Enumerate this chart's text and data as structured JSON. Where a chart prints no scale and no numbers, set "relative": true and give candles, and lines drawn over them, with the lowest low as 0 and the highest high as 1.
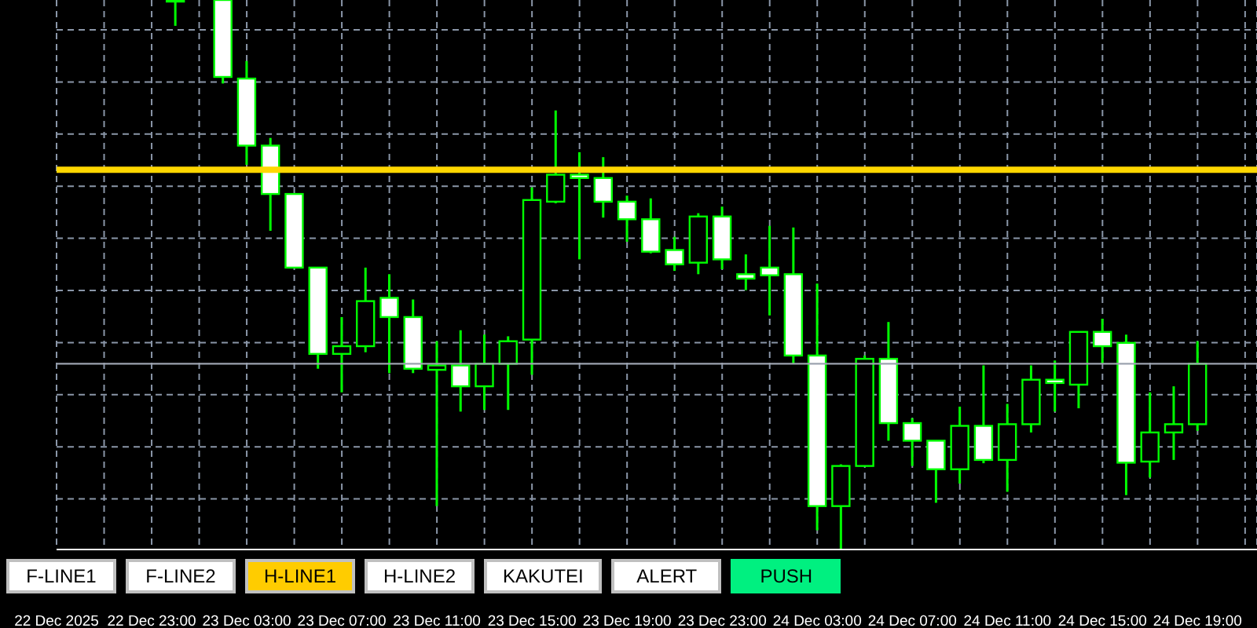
{
  "chart_data": {
    "type": "candlestick",
    "relative": true,
    "color": "#00ff00",
    "grid": true,
    "x": [
      "2025-12-23T00:00",
      "2025-12-23T02:00",
      "2025-12-23T03:00",
      "2025-12-23T04:00",
      "2025-12-23T05:00",
      "2025-12-23T06:00",
      "2025-12-23T07:00",
      "2025-12-23T08:00",
      "2025-12-23T09:00",
      "2025-12-23T10:00",
      "2025-12-23T11:00",
      "2025-12-23T12:00",
      "2025-12-23T13:00",
      "2025-12-23T14:00",
      "2025-12-23T15:00",
      "2025-12-23T16:00",
      "2025-12-23T17:00",
      "2025-12-23T18:00",
      "2025-12-23T19:00",
      "2025-12-23T20:00",
      "2025-12-23T21:00",
      "2025-12-23T22:00",
      "2025-12-23T23:00",
      "2025-12-24T00:00",
      "2025-12-24T01:00",
      "2025-12-24T02:00",
      "2025-12-24T03:00",
      "2025-12-24T04:00",
      "2025-12-24T05:00",
      "2025-12-24T06:00",
      "2025-12-24T07:00",
      "2025-12-24T08:00",
      "2025-12-24T09:00",
      "2025-12-24T10:00",
      "2025-12-24T11:00",
      "2025-12-24T12:00",
      "2025-12-24T13:00",
      "2025-12-24T14:00",
      "2025-12-24T15:00",
      "2025-12-24T16:00",
      "2025-12-24T17:00",
      "2025-12-24T18:00",
      "2025-12-24T19:00"
    ],
    "ohlc": [
      [
        1,
        1,
        0.953,
        1
      ],
      [
        1,
        1,
        0.848,
        0.86
      ],
      [
        0.857,
        0.889,
        0.7,
        0.735
      ],
      [
        0.735,
        0.749,
        0.58,
        0.647
      ],
      [
        0.647,
        0.647,
        0.513,
        0.513
      ],
      [
        0.513,
        0.513,
        0.329,
        0.356
      ],
      [
        0.356,
        0.423,
        0.286,
        0.37
      ],
      [
        0.37,
        0.513,
        0.359,
        0.452
      ],
      [
        0.458,
        0.501,
        0.321,
        0.423
      ],
      [
        0.423,
        0.455,
        0.321,
        0.329
      ],
      [
        0.327,
        0.379,
        0.079,
        0.335
      ],
      [
        0.335,
        0.399,
        0.251,
        0.297
      ],
      [
        0.297,
        0.391,
        0.254,
        0.338
      ],
      [
        0.338,
        0.388,
        0.254,
        0.379
      ],
      [
        0.382,
        0.659,
        0.318,
        0.636
      ],
      [
        0.633,
        0.799,
        0.63,
        0.682
      ],
      [
        0.682,
        0.723,
        0.528,
        0.676
      ],
      [
        0.676,
        0.714,
        0.604,
        0.633
      ],
      [
        0.633,
        0.644,
        0.56,
        0.601
      ],
      [
        0.601,
        0.639,
        0.539,
        0.542
      ],
      [
        0.545,
        0.569,
        0.507,
        0.519
      ],
      [
        0.522,
        0.612,
        0.501,
        0.606
      ],
      [
        0.606,
        0.624,
        0.51,
        0.528
      ],
      [
        0.501,
        0.537,
        0.472,
        0.493
      ],
      [
        0.513,
        0.589,
        0.426,
        0.499
      ],
      [
        0.501,
        0.586,
        0.338,
        0.353
      ],
      [
        0.353,
        0.484,
        0.035,
        0.079
      ],
      [
        0.079,
        0.155,
        0,
        0.152
      ],
      [
        0.152,
        0.353,
        0.152,
        0.347
      ],
      [
        0.347,
        0.414,
        0.198,
        0.23
      ],
      [
        0.23,
        0.239,
        0.152,
        0.198
      ],
      [
        0.198,
        0.198,
        0.085,
        0.146
      ],
      [
        0.146,
        0.26,
        0.12,
        0.225
      ],
      [
        0.225,
        0.335,
        0.157,
        0.163
      ],
      [
        0.163,
        0.265,
        0.105,
        0.228
      ],
      [
        0.228,
        0.335,
        0.213,
        0.309
      ],
      [
        0.309,
        0.344,
        0.251,
        0.303
      ],
      [
        0.3,
        0.396,
        0.257,
        0.396
      ],
      [
        0.396,
        0.42,
        0.338,
        0.37
      ],
      [
        0.376,
        0.391,
        0.099,
        0.158
      ],
      [
        0.16,
        0.286,
        0.131,
        0.213
      ],
      [
        0.213,
        0.297,
        0.163,
        0.228
      ],
      [
        0.228,
        0.379,
        0.216,
        0.338
      ]
    ],
    "xlim": [
      "2025-12-22T19:00",
      "2025-12-24T21:30"
    ],
    "xticks": [
      {
        "value": "2025-12-22T19:00",
        "label": "22 Dec 2025"
      },
      {
        "value": "2025-12-22T21:00",
        "label": null
      },
      {
        "value": "2025-12-22T23:00",
        "label": "22 Dec 23:00"
      },
      {
        "value": "2025-12-23T01:00",
        "label": null
      },
      {
        "value": "2025-12-23T03:00",
        "label": "23 Dec 03:00"
      },
      {
        "value": "2025-12-23T05:00",
        "label": null
      },
      {
        "value": "2025-12-23T07:00",
        "label": "23 Dec 07:00"
      },
      {
        "value": "2025-12-23T09:00",
        "label": null
      },
      {
        "value": "2025-12-23T11:00",
        "label": "23 Dec 11:00"
      },
      {
        "value": "2025-12-23T13:00",
        "label": null
      },
      {
        "value": "2025-12-23T15:00",
        "label": "23 Dec 15:00"
      },
      {
        "value": "2025-12-23T17:00",
        "label": null
      },
      {
        "value": "2025-12-23T19:00",
        "label": "23 Dec 19:00"
      },
      {
        "value": "2025-12-23T21:00",
        "label": null
      },
      {
        "value": "2025-12-23T23:00",
        "label": "23 Dec 23:00"
      },
      {
        "value": "2025-12-24T01:00",
        "label": null
      },
      {
        "value": "2025-12-24T03:00",
        "label": "24 Dec 03:00"
      },
      {
        "value": "2025-12-24T05:00",
        "label": null
      },
      {
        "value": "2025-12-24T07:00",
        "label": "24 Dec 07:00"
      },
      {
        "value": "2025-12-24T09:00",
        "label": null
      },
      {
        "value": "2025-12-24T11:00",
        "label": "24 Dec 11:00"
      },
      {
        "value": "2025-12-24T13:00",
        "label": null
      },
      {
        "value": "2025-12-24T15:00",
        "label": "24 Dec 15:00"
      },
      {
        "value": "2025-12-24T17:00",
        "label": null
      },
      {
        "value": "2025-12-24T19:00",
        "label": "24 Dec 19:00"
      },
      {
        "value": "2025-12-24T21:00",
        "label": null
      }
    ],
    "ref_lines": [
      {
        "axis": "y",
        "value": 0.691,
        "color": "#ffd700"
      },
      {
        "axis": "y",
        "value": 0.338,
        "color": "#9ca3af"
      }
    ],
    "annotations": [
      "F-LINE1",
      "F-LINE2",
      "H-LINE1",
      "H-LINE2",
      "KAKUTEI",
      "ALERT",
      "PUSH"
    ]
  }
}
